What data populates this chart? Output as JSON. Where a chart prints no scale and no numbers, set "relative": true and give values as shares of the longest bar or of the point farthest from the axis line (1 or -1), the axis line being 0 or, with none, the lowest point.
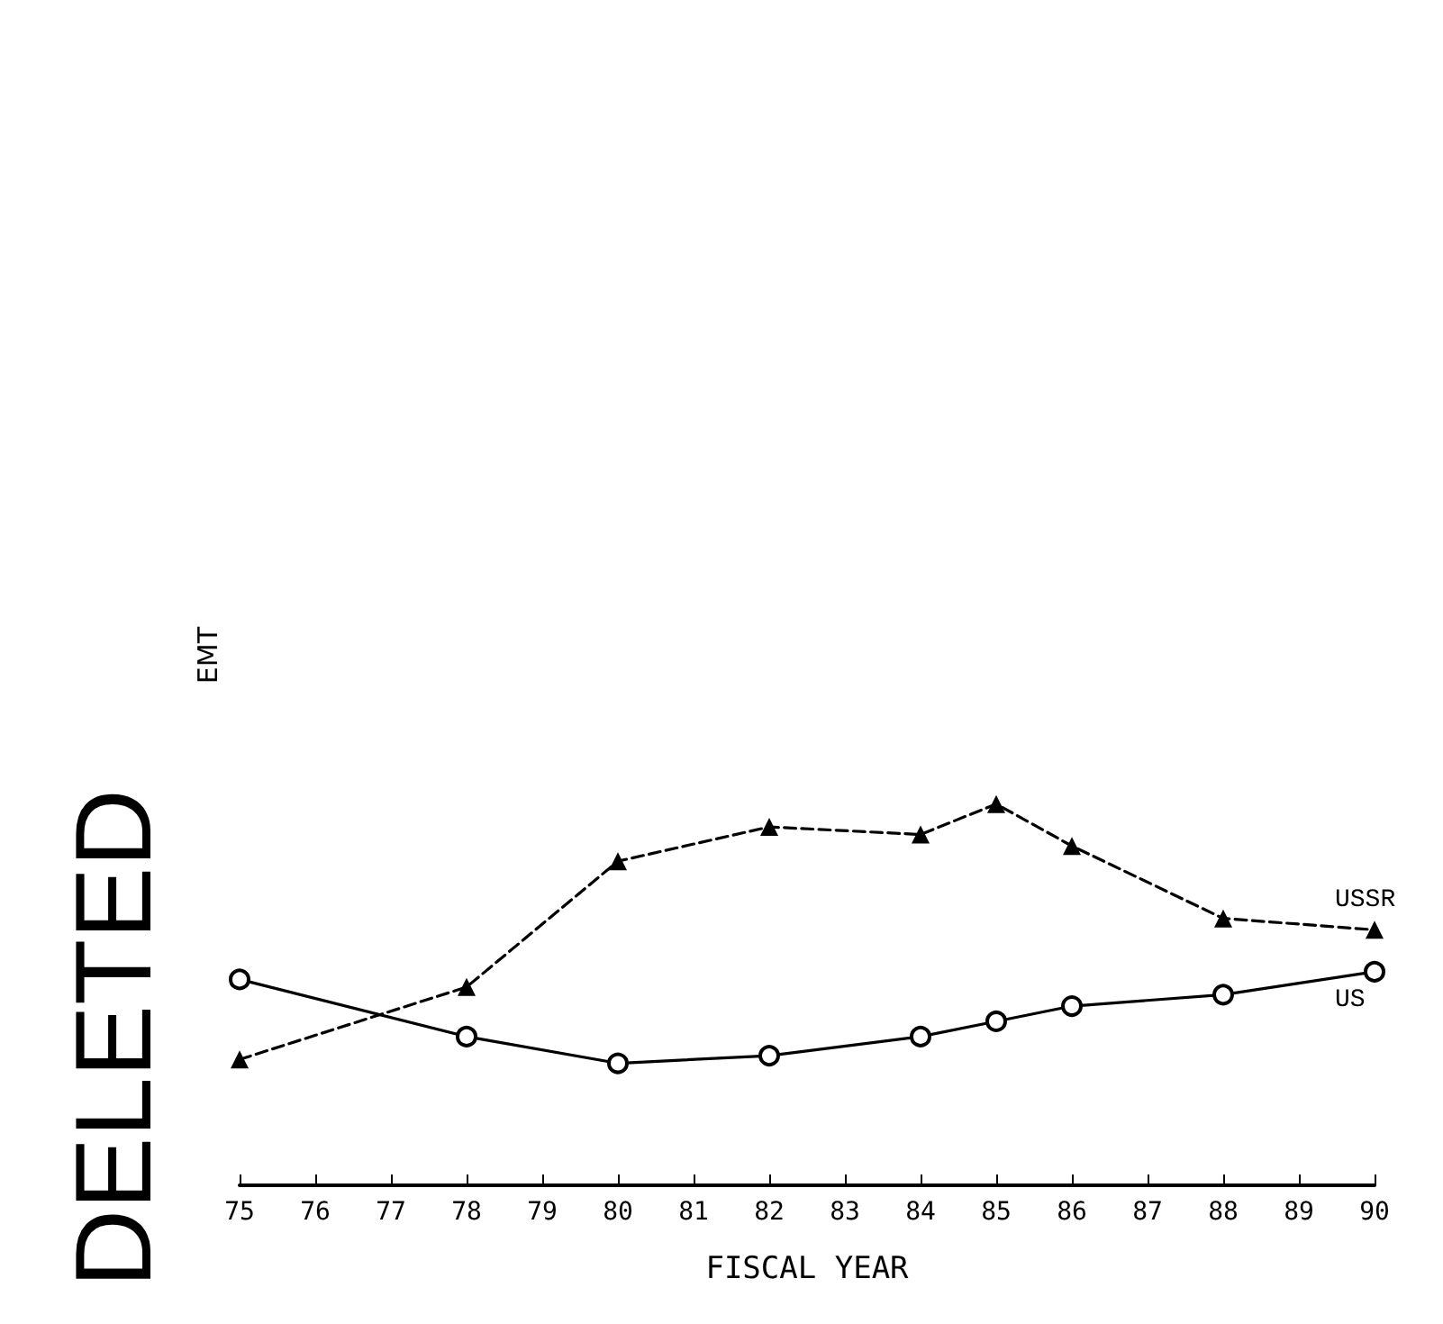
{
  "chart_data": {
    "type": "line",
    "xlabel": "FISCAL YEAR",
    "ylabel": "EMT",
    "relative": true,
    "tick_labels": "x",
    "grid": false,
    "legend": false,
    "x": [
      75,
      78,
      80,
      82,
      84,
      85,
      86,
      88,
      90
    ],
    "xlim": [
      75,
      90
    ],
    "xticks": [
      75,
      76,
      77,
      78,
      79,
      80,
      81,
      82,
      83,
      84,
      85,
      86,
      87,
      88,
      89,
      90
    ],
    "series": [
      {
        "name": "USSR",
        "color": "#000000",
        "marker": "triangle",
        "line_style": "dashed",
        "values": [
          0.33,
          0.52,
          0.85,
          0.94,
          0.92,
          1,
          0.89,
          0.7,
          0.67
        ]
      },
      {
        "name": "US",
        "color": "#000000",
        "marker": "circle",
        "line_style": "solid",
        "values": [
          0.54,
          0.39,
          0.32,
          0.34,
          0.39,
          0.43,
          0.47,
          0.5,
          0.56
        ]
      }
    ],
    "annotations": [
      "DELETED"
    ]
  }
}
